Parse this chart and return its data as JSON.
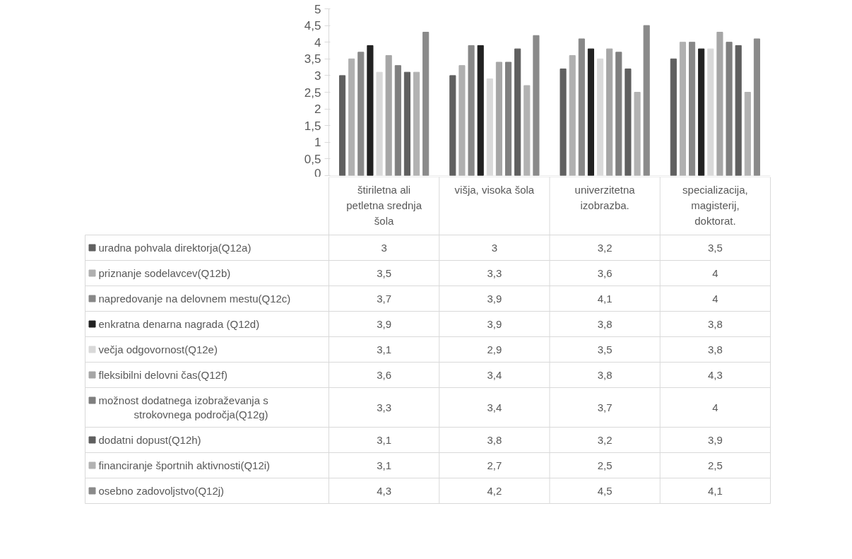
{
  "chart_data": {
    "type": "bar",
    "categories": [
      "štiriletna ali petletna srednja šola",
      "višja, visoka šola",
      "univerzitetna izobrazba.",
      "specializacija, magisterij, doktorat."
    ],
    "series": [
      {
        "name": "uradna pohvala direktorja(Q12a)",
        "color": "#606060",
        "values": [
          3,
          3,
          3.2,
          3.5
        ],
        "value_labels": [
          "3",
          "3",
          "3,2",
          "3,5"
        ]
      },
      {
        "name": "priznanje sodelavcev(Q12b)",
        "color": "#b0b0b0",
        "values": [
          3.5,
          3.3,
          3.6,
          4
        ],
        "value_labels": [
          "3,5",
          "3,3",
          "3,6",
          "4"
        ]
      },
      {
        "name": "napredovanje na delovnem mestu(Q12c)",
        "color": "#888888",
        "values": [
          3.7,
          3.9,
          4.1,
          4
        ],
        "value_labels": [
          "3,7",
          "3,9",
          "4,1",
          "4"
        ]
      },
      {
        "name": "enkratna denarna nagrada (Q12d)",
        "color": "#222222",
        "values": [
          3.9,
          3.9,
          3.8,
          3.8
        ],
        "value_labels": [
          "3,9",
          "3,9",
          "3,8",
          "3,8"
        ]
      },
      {
        "name": "večja odgovornost(Q12e)",
        "color": "#d9d9d9",
        "values": [
          3.1,
          2.9,
          3.5,
          3.8
        ],
        "value_labels": [
          "3,1",
          "2,9",
          "3,5",
          "3,8"
        ]
      },
      {
        "name": "fleksibilni delovni čas(Q12f)",
        "color": "#a6a6a6",
        "values": [
          3.6,
          3.4,
          3.8,
          4.3
        ],
        "value_labels": [
          "3,6",
          "3,4",
          "3,8",
          "4,3"
        ]
      },
      {
        "name": "možnost dodatnega izobraževanja s strokovnega področja(Q12g)",
        "color": "#7f7f7f",
        "values": [
          3.3,
          3.4,
          3.7,
          4
        ],
        "value_labels": [
          "3,3",
          "3,4",
          "3,7",
          "4"
        ]
      },
      {
        "name": "dodatni dopust(Q12h)",
        "color": "#5f5f5f",
        "values": [
          3.1,
          3.8,
          3.2,
          3.9
        ],
        "value_labels": [
          "3,1",
          "3,8",
          "3,2",
          "3,9"
        ]
      },
      {
        "name": "financiranje športnih aktivnosti(Q12i)",
        "color": "#b2b2b2",
        "values": [
          3.1,
          2.7,
          2.5,
          2.5
        ],
        "value_labels": [
          "3,1",
          "2,7",
          "2,5",
          "2,5"
        ]
      },
      {
        "name": "osebno zadovoljstvo(Q12j)",
        "color": "#8a8a8a",
        "values": [
          4.3,
          4.2,
          4.5,
          4.1
        ],
        "value_labels": [
          "4,3",
          "4,2",
          "4,5",
          "4,1"
        ]
      }
    ],
    "ylim": [
      0,
      5
    ],
    "yticks": [
      0,
      {
        "value": 0.5,
        "label": "0,5"
      },
      1,
      {
        "value": 1.5,
        "label": "1,5"
      },
      2,
      {
        "value": 2.5,
        "label": "2,5"
      },
      3,
      {
        "value": 3.5,
        "label": "3,5"
      },
      4,
      {
        "value": 4.5,
        "label": "4,5"
      },
      5
    ],
    "legend": "bottom"
  }
}
